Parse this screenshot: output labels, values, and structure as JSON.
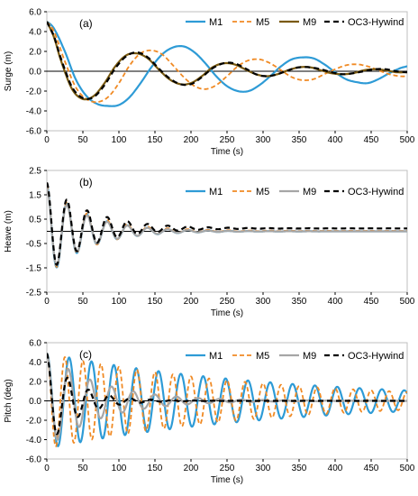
{
  "chart_data": [
    {
      "type": "line",
      "panel_label": "(a)",
      "xlabel": "Time (s)",
      "ylabel": "Surge  (m)",
      "xlim": [
        0,
        500
      ],
      "ylim": [
        -6,
        6
      ],
      "xticks": [
        "0",
        "50",
        "100",
        "150",
        "200",
        "250",
        "300",
        "350",
        "400",
        "450",
        "500"
      ],
      "yticks": [
        "-6.0",
        "-4.0",
        "-2.0",
        "0.0",
        "2.0",
        "4.0",
        "6.0"
      ],
      "grid": false,
      "legend": "top-right",
      "series": [
        {
          "name": "M1",
          "x": [
            0,
            10,
            25,
            40,
            55,
            70,
            85,
            100,
            115,
            130,
            145,
            160,
            175,
            190,
            205,
            220,
            235,
            250,
            265,
            280,
            295,
            310,
            325,
            340,
            355,
            370,
            385,
            400,
            415,
            430,
            445,
            460,
            475,
            490,
            500
          ],
          "values": [
            5.0,
            4.3,
            2.0,
            -0.8,
            -2.5,
            -3.3,
            -3.5,
            -3.4,
            -2.6,
            -1.2,
            0.4,
            1.7,
            2.4,
            2.5,
            1.9,
            0.8,
            -0.5,
            -1.5,
            -2.0,
            -2.0,
            -1.4,
            -0.5,
            0.5,
            1.2,
            1.4,
            1.3,
            0.7,
            -0.1,
            -0.8,
            -1.1,
            -1.2,
            -0.8,
            -0.2,
            0.3,
            0.5
          ]
        },
        {
          "name": "M5",
          "x": [
            0,
            10,
            25,
            40,
            55,
            70,
            85,
            100,
            115,
            130,
            145,
            160,
            175,
            190,
            205,
            220,
            235,
            250,
            265,
            280,
            295,
            310,
            325,
            340,
            355,
            370,
            385,
            400,
            415,
            430,
            445,
            460,
            475,
            490,
            500
          ],
          "values": [
            5.0,
            4.0,
            1.0,
            -1.6,
            -2.8,
            -3.1,
            -2.6,
            -1.2,
            0.6,
            1.8,
            2.1,
            1.7,
            0.6,
            -0.6,
            -1.5,
            -1.8,
            -1.4,
            -0.5,
            0.5,
            1.1,
            1.2,
            0.8,
            0.1,
            -0.6,
            -0.9,
            -0.8,
            -0.3,
            0.2,
            0.6,
            0.7,
            0.5,
            0.1,
            -0.3,
            -0.5,
            -0.5
          ]
        },
        {
          "name": "M9",
          "x": [
            0,
            10,
            20,
            35,
            50,
            65,
            80,
            95,
            110,
            125,
            140,
            155,
            170,
            185,
            200,
            215,
            230,
            245,
            260,
            275,
            290,
            305,
            320,
            335,
            350,
            365,
            380,
            395,
            410,
            425,
            440,
            455,
            470,
            485,
            500
          ],
          "values": [
            5.0,
            3.4,
            1.0,
            -1.8,
            -2.8,
            -2.5,
            -1.2,
            0.5,
            1.6,
            1.8,
            1.3,
            0.2,
            -0.8,
            -1.3,
            -1.2,
            -0.5,
            0.4,
            0.8,
            0.7,
            0.2,
            -0.3,
            -0.5,
            -0.3,
            0.1,
            0.4,
            0.4,
            0.1,
            -0.2,
            -0.3,
            -0.2,
            0.1,
            0.2,
            0.1,
            -0.1,
            -0.1
          ]
        },
        {
          "name": "OC3-Hywind",
          "x": [
            0,
            10,
            20,
            35,
            50,
            65,
            80,
            95,
            110,
            125,
            140,
            155,
            170,
            185,
            200,
            215,
            230,
            245,
            260,
            275,
            290,
            305,
            320,
            335,
            350,
            365,
            380,
            395,
            410,
            425,
            440,
            455,
            470,
            485,
            500
          ],
          "values": [
            5.0,
            3.5,
            1.2,
            -1.6,
            -2.7,
            -2.6,
            -1.4,
            0.3,
            1.5,
            1.9,
            1.4,
            0.3,
            -0.7,
            -1.3,
            -1.3,
            -0.6,
            0.3,
            0.8,
            0.8,
            0.3,
            -0.3,
            -0.5,
            -0.3,
            0.1,
            0.4,
            0.4,
            0.2,
            -0.1,
            -0.3,
            -0.2,
            0.0,
            0.2,
            0.2,
            0.0,
            -0.1
          ]
        }
      ]
    },
    {
      "type": "line",
      "panel_label": "(b)",
      "xlabel": "Time (s)",
      "ylabel": "Heave  (m)",
      "xlim": [
        0,
        500
      ],
      "ylim": [
        -2.5,
        2.5
      ],
      "xticks": [
        "0",
        "50",
        "100",
        "150",
        "200",
        "250",
        "300",
        "350",
        "400",
        "450",
        "500"
      ],
      "yticks": [
        "-2.5",
        "-1.5",
        "-0.5",
        "0.5",
        "1.5",
        "2.5"
      ],
      "grid": false,
      "legend": "top-right",
      "series": [
        {
          "name": "M1",
          "decay": {
            "y0": 1.9,
            "offset": 0.0,
            "period": 28,
            "tau": 55,
            "tmax": 500
          }
        },
        {
          "name": "M5",
          "decay": {
            "y0": 1.9,
            "offset": 0.02,
            "period": 28,
            "tau": 58,
            "tmax": 500
          }
        },
        {
          "name": "M9",
          "decay": {
            "y0": 1.8,
            "offset": 0.0,
            "period": 28,
            "tau": 55,
            "tmax": 500
          }
        },
        {
          "name": "OC3-Hywind",
          "decay": {
            "y0": 2.0,
            "offset": 0.12,
            "period": 28,
            "tau": 60,
            "tmax": 500
          }
        }
      ]
    },
    {
      "type": "line",
      "panel_label": "(c)",
      "xlabel": "Time (s)",
      "ylabel": "Pitch (deg)",
      "xlim": [
        0,
        500
      ],
      "ylim": [
        -6,
        6
      ],
      "xticks": [
        "0",
        "50",
        "100",
        "150",
        "200",
        "250",
        "300",
        "350",
        "400",
        "450",
        "500"
      ],
      "yticks": [
        "-6.0",
        "-4.0",
        "-2.0",
        "0.0",
        "2.0",
        "4.0",
        "6.0"
      ],
      "grid": false,
      "legend": "top-right",
      "series": [
        {
          "name": "M1",
          "decay": {
            "y0": 4.9,
            "offset": 0.0,
            "period": 31,
            "tau": 330,
            "tmax": 500
          }
        },
        {
          "name": "M5",
          "decay": {
            "y0": 4.9,
            "offset": 0.0,
            "period": 25,
            "tau": 300,
            "tmax": 500
          }
        },
        {
          "name": "M9",
          "decay": {
            "y0": 4.9,
            "offset": 0.0,
            "period": 30,
            "tau": 75,
            "tmax": 500
          }
        },
        {
          "name": "OC3-Hywind",
          "decay": {
            "y0": 4.9,
            "offset": 0.0,
            "period": 29,
            "tau": 40,
            "tmax": 500
          }
        }
      ]
    }
  ],
  "styles": {
    "M1": {
      "color": "#2e9bd6",
      "dash": "",
      "width": 2.2
    },
    "M5": {
      "color": "#f08a24",
      "dash": "5,3",
      "width": 1.8
    },
    "M9_a": {
      "color": "#7a5a10",
      "dash": "",
      "width": 2.2
    },
    "M9": {
      "color": "#a6a6a6",
      "dash": "",
      "width": 2.2
    },
    "OC3-Hywind": {
      "color": "#000000",
      "dash": "6,4",
      "width": 2.2
    }
  }
}
